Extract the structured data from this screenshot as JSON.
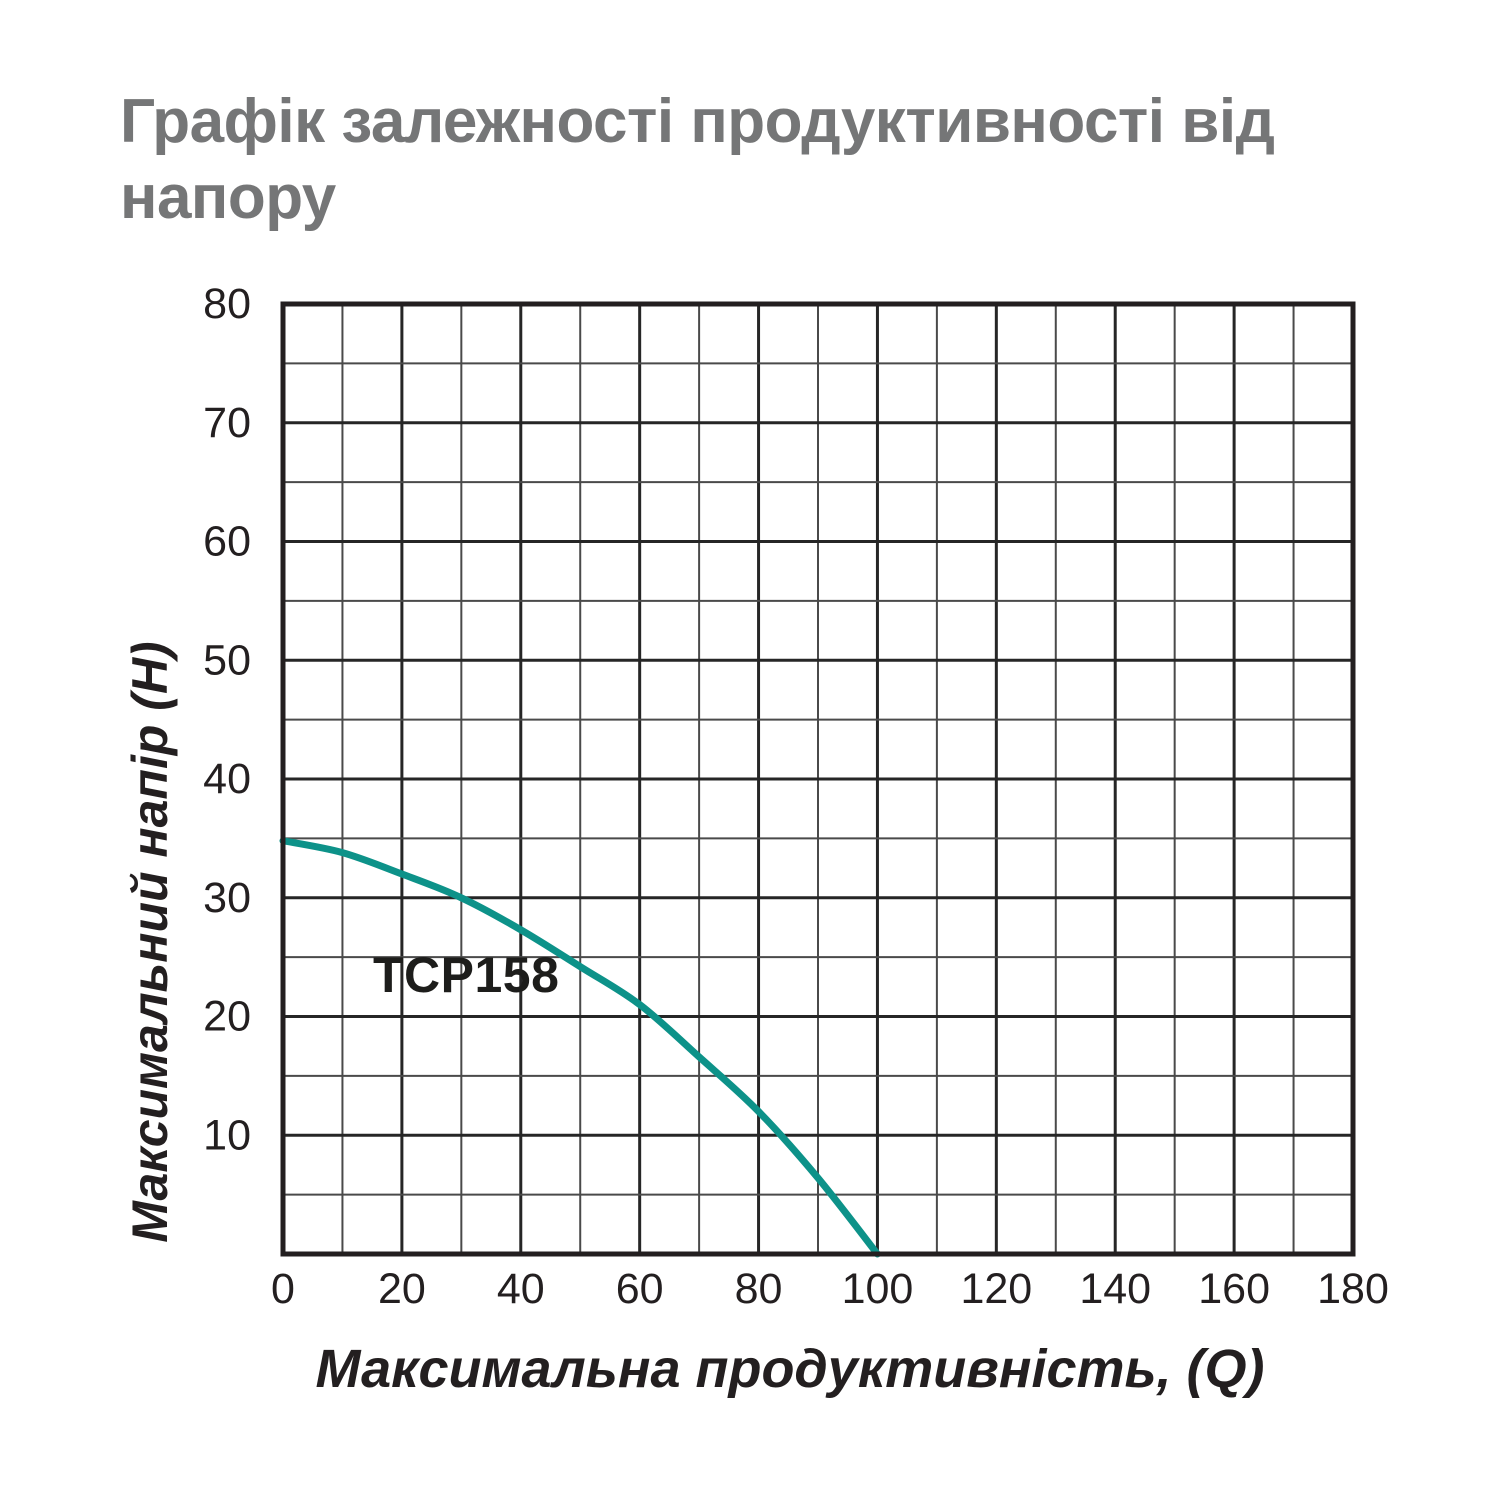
{
  "header": {
    "title_lines": [
      "Графік залежності продуктивності від",
      "напору"
    ],
    "title_color": "#757677"
  },
  "chart_data": {
    "type": "line",
    "title": "Графік залежності продуктивності від напору",
    "xlabel": "Максимальна продуктивність, (Q)",
    "ylabel": "Максимальний напір (Н)",
    "xlim": [
      0,
      180
    ],
    "ylim": [
      0,
      80
    ],
    "x_ticks": [
      0,
      20,
      40,
      60,
      80,
      100,
      120,
      140,
      160,
      180
    ],
    "y_ticks": [
      10,
      20,
      30,
      40,
      50,
      60,
      70,
      80
    ],
    "x_minor_step": 10,
    "y_minor_step": 5,
    "x_major_step": 20,
    "y_major_step": 10,
    "grid": {
      "on": true,
      "minor_color": "#4a4a4a",
      "major_color": "#262626",
      "border_color": "#231f20"
    },
    "legend_position": "none",
    "series": [
      {
        "name": "TCP158",
        "color": "#0d9289",
        "points": [
          [
            0,
            34.8
          ],
          [
            10,
            33.8
          ],
          [
            20,
            32.0
          ],
          [
            30,
            30.0
          ],
          [
            40,
            27.3
          ],
          [
            50,
            24.2
          ],
          [
            60,
            21.0
          ],
          [
            70,
            16.6
          ],
          [
            80,
            12.0
          ],
          [
            90,
            6.4
          ],
          [
            100,
            0
          ]
        ]
      }
    ],
    "text_color": "#231f20"
  }
}
